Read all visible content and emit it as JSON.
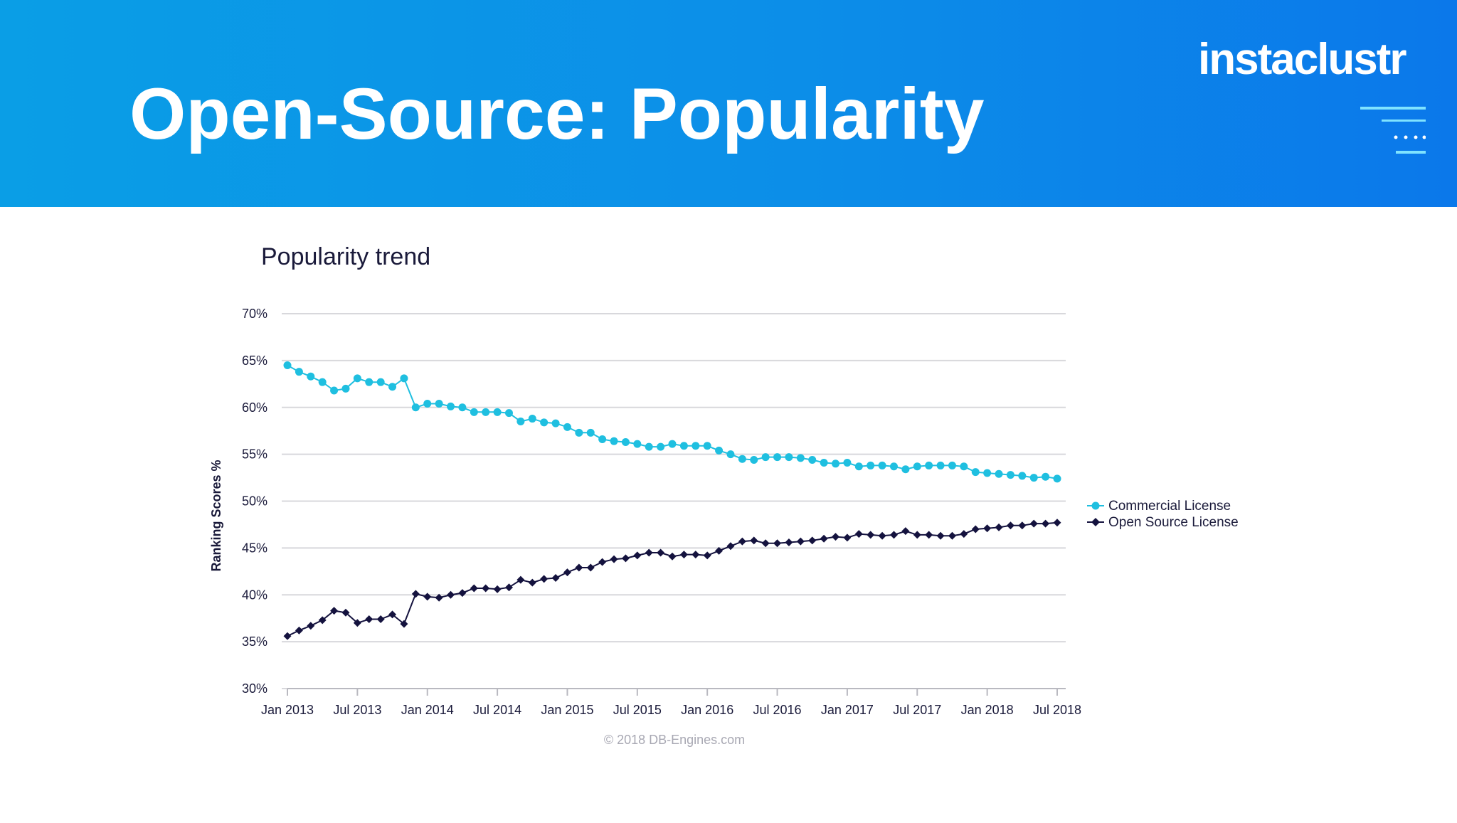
{
  "slide": {
    "title": "Open-Source: Popularity",
    "brand": "instaclustr",
    "header_colors": [
      "#0a9ee6",
      "#0b78ea"
    ],
    "brand_mark_icon": "lines-dots-icon"
  },
  "chart_data": {
    "type": "line",
    "title": "Popularity trend",
    "xlabel": "",
    "ylabel": "Ranking Scores %",
    "ylim": [
      30,
      70
    ],
    "yticks": [
      "70%",
      "65%",
      "60%",
      "55%",
      "50%",
      "45%",
      "40%",
      "35%",
      "30%"
    ],
    "ytick_values": [
      70,
      65,
      60,
      55,
      50,
      45,
      40,
      35,
      30
    ],
    "xticks": [
      "Jan 2013",
      "Jul 2013",
      "Jan 2014",
      "Jul 2014",
      "Jan 2015",
      "Jul 2015",
      "Jan 2016",
      "Jul 2016",
      "Jan 2017",
      "Jul 2017",
      "Jan 2018",
      "Jul 2018"
    ],
    "x": [
      "2013-01",
      "2013-02",
      "2013-03",
      "2013-04",
      "2013-05",
      "2013-06",
      "2013-07",
      "2013-08",
      "2013-09",
      "2013-10",
      "2013-11",
      "2013-12",
      "2014-01",
      "2014-02",
      "2014-03",
      "2014-04",
      "2014-05",
      "2014-06",
      "2014-07",
      "2014-08",
      "2014-09",
      "2014-10",
      "2014-11",
      "2014-12",
      "2015-01",
      "2015-02",
      "2015-03",
      "2015-04",
      "2015-05",
      "2015-06",
      "2015-07",
      "2015-08",
      "2015-09",
      "2015-10",
      "2015-11",
      "2015-12",
      "2016-01",
      "2016-02",
      "2016-03",
      "2016-04",
      "2016-05",
      "2016-06",
      "2016-07",
      "2016-08",
      "2016-09",
      "2016-10",
      "2016-11",
      "2016-12",
      "2017-01",
      "2017-02",
      "2017-03",
      "2017-04",
      "2017-05",
      "2017-06",
      "2017-07",
      "2017-08",
      "2017-09",
      "2017-10",
      "2017-11",
      "2017-12",
      "2018-01",
      "2018-02",
      "2018-03",
      "2018-04",
      "2018-05",
      "2018-06",
      "2018-07"
    ],
    "grid": true,
    "legend_position": "right",
    "series": [
      {
        "name": "Commercial License",
        "color": "#1fbfe0",
        "marker": "circle",
        "values": [
          64.5,
          63.8,
          63.3,
          62.7,
          61.8,
          62.0,
          63.1,
          62.7,
          62.7,
          62.2,
          63.1,
          60.0,
          60.4,
          60.4,
          60.1,
          60.0,
          59.5,
          59.5,
          59.5,
          59.4,
          58.5,
          58.8,
          58.4,
          58.3,
          57.9,
          57.3,
          57.3,
          56.6,
          56.4,
          56.3,
          56.1,
          55.8,
          55.8,
          56.1,
          55.9,
          55.9,
          55.9,
          55.4,
          55.0,
          54.5,
          54.4,
          54.7,
          54.7,
          54.7,
          54.6,
          54.4,
          54.1,
          54.0,
          54.1,
          53.7,
          53.8,
          53.8,
          53.7,
          53.4,
          53.7,
          53.8,
          53.8,
          53.8,
          53.7,
          53.1,
          53.0,
          52.9,
          52.8,
          52.7,
          52.5,
          52.6,
          52.4
        ]
      },
      {
        "name": "Open Source License",
        "color": "#14123e",
        "marker": "diamond",
        "values": [
          35.6,
          36.2,
          36.7,
          37.3,
          38.3,
          38.1,
          37.0,
          37.4,
          37.4,
          37.9,
          36.9,
          40.1,
          39.8,
          39.7,
          40.0,
          40.2,
          40.7,
          40.7,
          40.6,
          40.8,
          41.6,
          41.3,
          41.7,
          41.8,
          42.4,
          42.9,
          42.9,
          43.5,
          43.8,
          43.9,
          44.2,
          44.5,
          44.5,
          44.1,
          44.3,
          44.3,
          44.2,
          44.7,
          45.2,
          45.7,
          45.8,
          45.5,
          45.5,
          45.6,
          45.7,
          45.8,
          46.0,
          46.2,
          46.1,
          46.5,
          46.4,
          46.3,
          46.4,
          46.8,
          46.4,
          46.4,
          46.3,
          46.3,
          46.5,
          47.0,
          47.1,
          47.2,
          47.4,
          47.4,
          47.6,
          47.6,
          47.7
        ]
      }
    ],
    "source_note": "© 2018 DB-Engines.com"
  }
}
